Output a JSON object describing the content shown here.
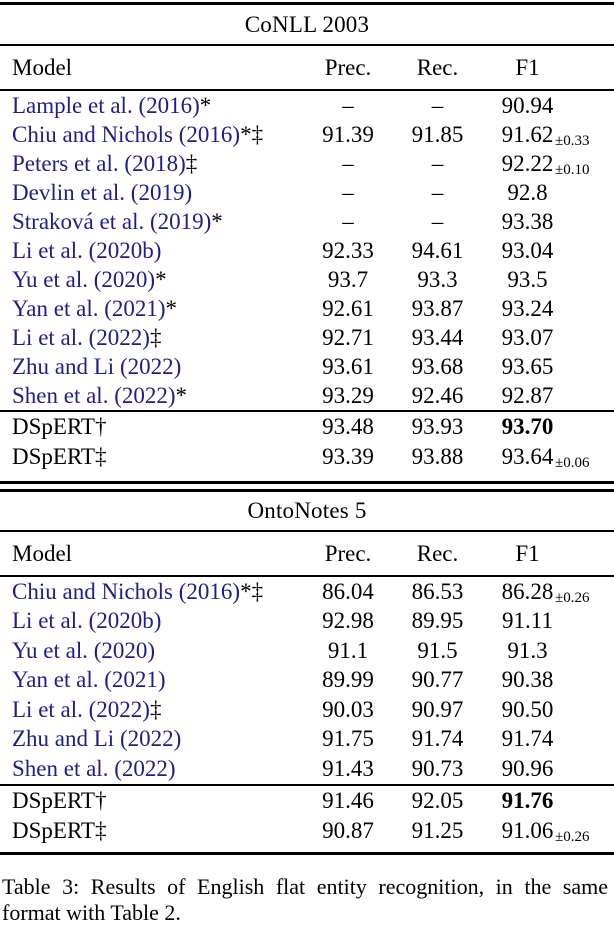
{
  "colors": {
    "citation_blue": "#1d1d8c",
    "text": "#000000",
    "background": "#ffffff"
  },
  "conll": {
    "title": "CoNLL 2003",
    "headers": {
      "model": "Model",
      "prec": "Prec.",
      "rec": "Rec.",
      "f1": "F1"
    },
    "rows": [
      {
        "model": "Lample et al. (2016)",
        "marker": "*",
        "prec": "–",
        "rec": "–",
        "f1": "90.94",
        "f1_sub": ""
      },
      {
        "model": "Chiu and Nichols (2016)",
        "marker": "*‡",
        "prec": "91.39",
        "rec": "91.85",
        "f1": "91.62",
        "f1_sub": "±0.33"
      },
      {
        "model": "Peters et al. (2018)",
        "marker": "‡",
        "prec": "–",
        "rec": "–",
        "f1": "92.22",
        "f1_sub": "±0.10"
      },
      {
        "model": "Devlin et al. (2019)",
        "marker": "",
        "prec": "–",
        "rec": "–",
        "f1": "92.8",
        "f1_sub": ""
      },
      {
        "model": "Straková et al. (2019)",
        "marker": "*",
        "prec": "–",
        "rec": "–",
        "f1": "93.38",
        "f1_sub": ""
      },
      {
        "model": "Li et al. (2020b)",
        "marker": "",
        "prec": "92.33",
        "rec": "94.61",
        "f1": "93.04",
        "f1_sub": ""
      },
      {
        "model": "Yu et al. (2020)",
        "marker": "*",
        "prec": "93.7",
        "rec": "93.3",
        "f1": "93.5",
        "f1_sub": ""
      },
      {
        "model": "Yan et al. (2021)",
        "marker": "*",
        "prec": "92.61",
        "rec": "93.87",
        "f1": "93.24",
        "f1_sub": ""
      },
      {
        "model": "Li et al. (2022)",
        "marker": "‡",
        "prec": "92.71",
        "rec": "93.44",
        "f1": "93.07",
        "f1_sub": ""
      },
      {
        "model": "Zhu and Li (2022)",
        "marker": "",
        "prec": "93.61",
        "rec": "93.68",
        "f1": "93.65",
        "f1_sub": ""
      },
      {
        "model": "Shen et al. (2022)",
        "marker": "*",
        "prec": "93.29",
        "rec": "92.46",
        "f1": "92.87",
        "f1_sub": ""
      }
    ],
    "ours": [
      {
        "model": "DSpERT",
        "marker": "†",
        "prec": "93.48",
        "rec": "93.93",
        "f1": "93.70",
        "f1_sub": ""
      },
      {
        "model": "DSpERT",
        "marker": "‡",
        "prec": "93.39",
        "rec": "93.88",
        "f1": "93.64",
        "f1_sub": "±0.06"
      }
    ]
  },
  "ontonotes": {
    "title": "OntoNotes 5",
    "headers": {
      "model": "Model",
      "prec": "Prec.",
      "rec": "Rec.",
      "f1": "F1"
    },
    "rows": [
      {
        "model": "Chiu and Nichols (2016)",
        "marker": "*‡",
        "prec": "86.04",
        "rec": "86.53",
        "f1": "86.28",
        "f1_sub": "±0.26"
      },
      {
        "model": "Li et al. (2020b)",
        "marker": "",
        "prec": "92.98",
        "rec": "89.95",
        "f1": "91.11",
        "f1_sub": ""
      },
      {
        "model": "Yu et al. (2020)",
        "marker": "",
        "prec": "91.1",
        "rec": "91.5",
        "f1": "91.3",
        "f1_sub": ""
      },
      {
        "model": "Yan et al. (2021)",
        "marker": "",
        "prec": "89.99",
        "rec": "90.77",
        "f1": "90.38",
        "f1_sub": ""
      },
      {
        "model": "Li et al. (2022)",
        "marker": "‡",
        "prec": "90.03",
        "rec": "90.97",
        "f1": "90.50",
        "f1_sub": ""
      },
      {
        "model": "Zhu and Li (2022)",
        "marker": "",
        "prec": "91.75",
        "rec": "91.74",
        "f1": "91.74",
        "f1_sub": ""
      },
      {
        "model": "Shen et al. (2022)",
        "marker": "",
        "prec": "91.43",
        "rec": "90.73",
        "f1": "90.96",
        "f1_sub": ""
      }
    ],
    "ours": [
      {
        "model": "DSpERT",
        "marker": "†",
        "prec": "91.46",
        "rec": "92.05",
        "f1": "91.76",
        "f1_sub": ""
      },
      {
        "model": "DSpERT",
        "marker": "‡",
        "prec": "90.87",
        "rec": "91.25",
        "f1": "91.06",
        "f1_sub": "±0.26"
      }
    ]
  },
  "caption": "Table 3: Results of English flat entity recognition, in the same format with Table 2."
}
